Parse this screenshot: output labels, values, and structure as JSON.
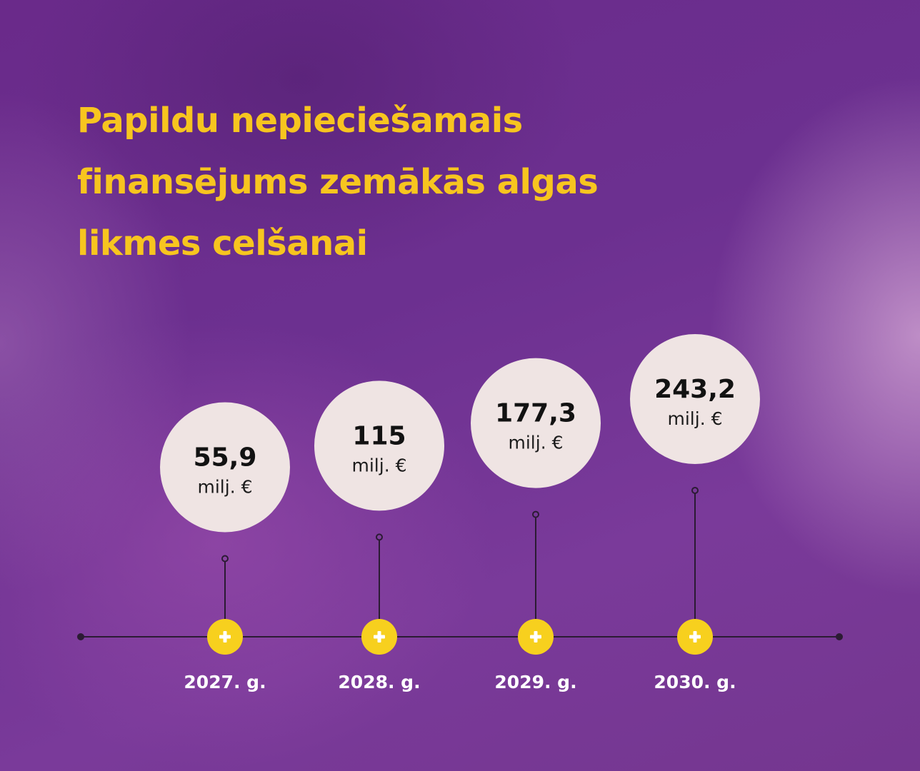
{
  "title_lines": [
    "Papildu nepieciešamais",
    "finansējums zemākās algas",
    "likmes celšanai"
  ],
  "colors": {
    "title": "#f7c51f",
    "marker": "#f7d01e",
    "bubble": "#efe4e3",
    "axis": "#2b1b33"
  },
  "marker_icon": "plus-icon",
  "chart_data": {
    "type": "timeline",
    "title": "Papildu nepieciešamais finansējums zemākās algas likmes celšanai",
    "categories": [
      "2027. g.",
      "2028. g.",
      "2029. g.",
      "2030. g."
    ],
    "values": [
      55.9,
      115,
      177.3,
      243.2
    ],
    "value_labels": [
      "55,9",
      "115",
      "177,3",
      "243,2"
    ],
    "unit": "milj. €"
  }
}
